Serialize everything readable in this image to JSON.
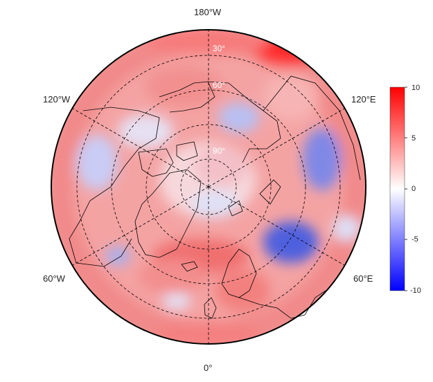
{
  "map": {
    "projection": "north-polar-stereographic",
    "grid_on": true,
    "latitude_circle_labels": [
      "30°",
      "60°",
      "90°"
    ],
    "longitude_labels": {
      "top": "180°W",
      "upper_left": "120°W",
      "upper_right": "120°E",
      "lower_left": "60°W",
      "lower_right": "60°E",
      "bottom": "0°"
    }
  },
  "colorbar": {
    "ticks": [
      "10",
      "5",
      "0",
      "-5",
      "-10"
    ],
    "range": [
      -10,
      10
    ],
    "colors": {
      "max": "#ff0000",
      "mid": "#ffffff",
      "min": "#0000ff"
    }
  },
  "colors": {
    "coastline": "#000000",
    "graticule": "#000000",
    "warm": "#f08080",
    "cool": "#8c96e6"
  }
}
